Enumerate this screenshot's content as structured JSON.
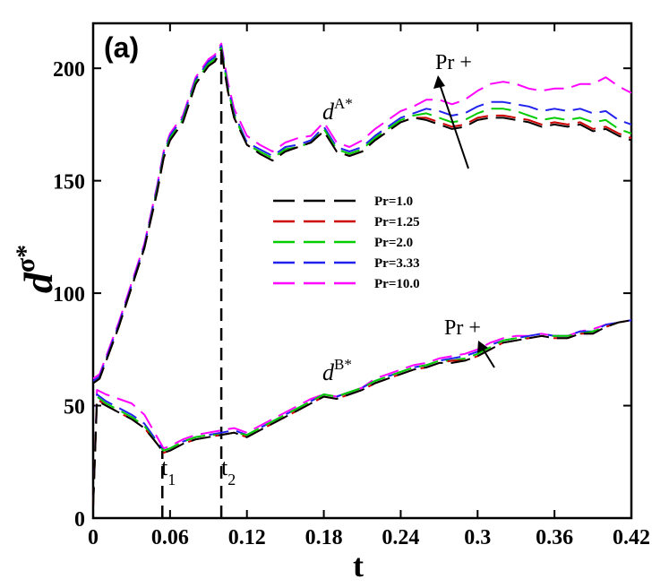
{
  "chart_data": {
    "type": "line",
    "panel_label": "(a)",
    "xlabel": "t",
    "ylabel_base": "d",
    "ylabel_sup": "σ*",
    "xlim": [
      0,
      0.42
    ],
    "ylim": [
      0,
      220
    ],
    "xticks": [
      0,
      0.06,
      0.12,
      0.18,
      0.24,
      0.3,
      0.36,
      0.42
    ],
    "xtick_labels": [
      "0",
      "0.06",
      "0.12",
      "0.18",
      "0.24",
      "0.3",
      "0.36",
      "0.42"
    ],
    "yticks": [
      0,
      50,
      100,
      150,
      200
    ],
    "ytick_labels": [
      "0",
      "50",
      "100",
      "150",
      "200"
    ],
    "grid": false,
    "legend_position": "center",
    "annotations": {
      "dA_base": "d",
      "dA_sup": "A*",
      "dB_base": "d",
      "dB_sup": "B*",
      "pr_upper": "Pr +",
      "pr_lower": "Pr +",
      "t1_base": "t",
      "t1_sub": "1",
      "t2_base": "t",
      "t2_sub": "2"
    },
    "vlines": [
      {
        "name": "t1",
        "x": 0.054,
        "y_top": 30
      },
      {
        "name": "t2",
        "x": 0.1,
        "y_top": 208
      }
    ],
    "series": [
      {
        "name": "Pr=1.0",
        "color": "#000000",
        "A_x": [
          0,
          0.005,
          0.02,
          0.04,
          0.05,
          0.055,
          0.06,
          0.07,
          0.08,
          0.09,
          0.095,
          0.1,
          0.105,
          0.11,
          0.12,
          0.13,
          0.14,
          0.15,
          0.16,
          0.17,
          0.18,
          0.19,
          0.2,
          0.21,
          0.22,
          0.23,
          0.24,
          0.25,
          0.26,
          0.27,
          0.28,
          0.29,
          0.3,
          0.31,
          0.32,
          0.33,
          0.34,
          0.35,
          0.36,
          0.37,
          0.38,
          0.39,
          0.4,
          0.41,
          0.42
        ],
        "A_y": [
          60,
          62,
          85,
          120,
          145,
          160,
          168,
          176,
          193,
          201,
          203,
          208,
          190,
          178,
          166,
          162,
          159,
          163,
          165,
          167,
          172,
          163,
          161,
          163,
          168,
          172,
          176,
          178,
          177,
          175,
          173,
          174,
          177,
          178,
          178,
          177,
          176,
          174,
          175,
          174,
          175,
          172,
          173,
          170,
          168
        ],
        "B_x": [
          0,
          0.003,
          0.01,
          0.02,
          0.03,
          0.04,
          0.05,
          0.055,
          0.06,
          0.07,
          0.08,
          0.09,
          0.1,
          0.11,
          0.12,
          0.13,
          0.14,
          0.15,
          0.16,
          0.17,
          0.18,
          0.19,
          0.2,
          0.21,
          0.22,
          0.23,
          0.24,
          0.25,
          0.26,
          0.27,
          0.28,
          0.29,
          0.3,
          0.31,
          0.32,
          0.33,
          0.34,
          0.35,
          0.36,
          0.37,
          0.38,
          0.39,
          0.4,
          0.41,
          0.42
        ],
        "B_y": [
          5,
          52,
          50,
          47,
          44,
          40,
          33,
          29,
          30,
          33,
          35,
          36,
          37,
          38,
          36,
          39,
          42,
          45,
          48,
          51,
          54,
          53,
          55,
          57,
          60,
          62,
          64,
          66,
          67,
          69,
          69,
          70,
          72,
          75,
          78,
          79,
          80,
          81,
          80,
          80,
          82,
          82,
          85,
          87,
          88
        ]
      },
      {
        "name": "Pr=1.25",
        "color": "#cc0000",
        "A_x": [
          0,
          0.005,
          0.02,
          0.04,
          0.05,
          0.055,
          0.06,
          0.07,
          0.08,
          0.09,
          0.095,
          0.1,
          0.105,
          0.11,
          0.12,
          0.13,
          0.14,
          0.15,
          0.16,
          0.17,
          0.18,
          0.19,
          0.2,
          0.21,
          0.22,
          0.23,
          0.24,
          0.25,
          0.26,
          0.27,
          0.28,
          0.29,
          0.3,
          0.31,
          0.32,
          0.33,
          0.34,
          0.35,
          0.36,
          0.37,
          0.38,
          0.39,
          0.4,
          0.41,
          0.42
        ],
        "A_y": [
          60,
          62,
          85,
          120,
          145,
          160,
          168,
          176,
          193,
          201,
          203,
          208,
          190,
          178,
          166,
          162,
          159,
          163,
          165,
          167,
          172,
          163,
          161,
          163,
          168,
          172,
          176,
          178,
          178,
          176,
          174,
          175,
          178,
          179,
          179,
          178,
          177,
          175,
          176,
          175,
          176,
          173,
          174,
          171,
          169
        ],
        "B_x": [
          0,
          0.003,
          0.01,
          0.02,
          0.03,
          0.04,
          0.05,
          0.055,
          0.06,
          0.07,
          0.08,
          0.09,
          0.1,
          0.11,
          0.12,
          0.13,
          0.14,
          0.15,
          0.16,
          0.17,
          0.18,
          0.19,
          0.2,
          0.21,
          0.22,
          0.23,
          0.24,
          0.25,
          0.26,
          0.27,
          0.28,
          0.29,
          0.3,
          0.31,
          0.32,
          0.33,
          0.34,
          0.35,
          0.36,
          0.37,
          0.38,
          0.39,
          0.4,
          0.41,
          0.42
        ],
        "B_y": [
          5,
          53,
          50,
          47,
          44,
          40,
          33,
          29,
          30,
          33,
          35,
          36,
          37,
          38,
          36,
          39,
          42,
          45,
          48,
          51,
          54,
          53,
          55,
          57,
          60,
          62,
          64,
          66,
          67,
          69,
          70,
          70,
          72,
          75,
          78,
          79,
          80,
          81,
          80,
          80,
          82,
          82,
          85,
          87,
          88
        ]
      },
      {
        "name": "Pr=2.0",
        "color": "#00cc00",
        "A_x": [
          0,
          0.005,
          0.02,
          0.04,
          0.05,
          0.055,
          0.06,
          0.07,
          0.08,
          0.09,
          0.095,
          0.1,
          0.105,
          0.11,
          0.12,
          0.13,
          0.14,
          0.15,
          0.16,
          0.17,
          0.18,
          0.19,
          0.2,
          0.21,
          0.22,
          0.23,
          0.24,
          0.25,
          0.26,
          0.27,
          0.28,
          0.29,
          0.3,
          0.31,
          0.32,
          0.33,
          0.34,
          0.35,
          0.36,
          0.37,
          0.38,
          0.39,
          0.4,
          0.41,
          0.42
        ],
        "A_y": [
          60,
          62,
          85,
          120,
          146,
          161,
          169,
          177,
          194,
          202,
          204,
          209,
          191,
          179,
          166,
          163,
          160,
          164,
          165,
          167,
          173,
          164,
          162,
          164,
          169,
          173,
          177,
          179,
          180,
          178,
          176,
          177,
          180,
          182,
          182,
          181,
          179,
          177,
          178,
          177,
          178,
          176,
          177,
          173,
          171
        ],
        "B_x": [
          0,
          0.003,
          0.01,
          0.02,
          0.03,
          0.04,
          0.05,
          0.055,
          0.06,
          0.07,
          0.08,
          0.09,
          0.1,
          0.11,
          0.12,
          0.13,
          0.14,
          0.15,
          0.16,
          0.17,
          0.18,
          0.19,
          0.2,
          0.21,
          0.22,
          0.23,
          0.24,
          0.25,
          0.26,
          0.27,
          0.28,
          0.29,
          0.3,
          0.31,
          0.32,
          0.33,
          0.34,
          0.35,
          0.36,
          0.37,
          0.38,
          0.39,
          0.4,
          0.41,
          0.42
        ],
        "B_y": [
          5,
          54,
          51,
          48,
          45,
          41,
          33,
          30,
          31,
          34,
          36,
          37,
          37,
          38,
          37,
          40,
          43,
          46,
          49,
          52,
          55,
          54,
          56,
          58,
          61,
          63,
          65,
          67,
          68,
          70,
          70,
          71,
          73,
          76,
          79,
          80,
          80,
          81,
          81,
          81,
          82,
          83,
          85,
          87,
          88
        ]
      },
      {
        "name": "Pr=3.33",
        "color": "#2222ee",
        "A_x": [
          0,
          0.005,
          0.02,
          0.04,
          0.05,
          0.055,
          0.06,
          0.07,
          0.08,
          0.09,
          0.095,
          0.1,
          0.105,
          0.11,
          0.12,
          0.13,
          0.14,
          0.15,
          0.16,
          0.17,
          0.18,
          0.19,
          0.2,
          0.21,
          0.22,
          0.23,
          0.24,
          0.25,
          0.26,
          0.27,
          0.28,
          0.29,
          0.3,
          0.31,
          0.32,
          0.33,
          0.34,
          0.35,
          0.36,
          0.37,
          0.38,
          0.39,
          0.4,
          0.41,
          0.42
        ],
        "A_y": [
          61,
          63,
          86,
          121,
          147,
          162,
          170,
          178,
          195,
          203,
          205,
          210,
          192,
          180,
          167,
          164,
          161,
          165,
          166,
          168,
          174,
          165,
          163,
          165,
          170,
          174,
          178,
          180,
          182,
          181,
          179,
          180,
          183,
          185,
          185,
          184,
          183,
          181,
          182,
          181,
          182,
          180,
          181,
          177,
          175
        ],
        "B_x": [
          0,
          0.003,
          0.01,
          0.02,
          0.03,
          0.04,
          0.05,
          0.055,
          0.06,
          0.07,
          0.08,
          0.09,
          0.1,
          0.11,
          0.12,
          0.13,
          0.14,
          0.15,
          0.16,
          0.17,
          0.18,
          0.19,
          0.2,
          0.21,
          0.22,
          0.23,
          0.24,
          0.25,
          0.26,
          0.27,
          0.28,
          0.29,
          0.3,
          0.31,
          0.32,
          0.33,
          0.34,
          0.35,
          0.36,
          0.37,
          0.38,
          0.39,
          0.4,
          0.41,
          0.42
        ],
        "B_y": [
          5,
          55,
          52,
          49,
          46,
          42,
          34,
          30,
          31,
          34,
          36,
          37,
          38,
          39,
          37,
          40,
          43,
          46,
          49,
          52,
          55,
          54,
          56,
          58,
          61,
          63,
          65,
          67,
          68,
          70,
          71,
          72,
          74,
          77,
          79,
          80,
          81,
          82,
          81,
          81,
          83,
          83,
          86,
          87,
          88
        ]
      },
      {
        "name": "Pr=10.0",
        "color": "#ff00ff",
        "A_x": [
          0,
          0.005,
          0.02,
          0.04,
          0.05,
          0.055,
          0.06,
          0.07,
          0.08,
          0.09,
          0.095,
          0.1,
          0.105,
          0.11,
          0.12,
          0.13,
          0.14,
          0.15,
          0.16,
          0.17,
          0.18,
          0.19,
          0.2,
          0.21,
          0.22,
          0.23,
          0.24,
          0.25,
          0.26,
          0.27,
          0.28,
          0.29,
          0.3,
          0.31,
          0.32,
          0.33,
          0.34,
          0.35,
          0.36,
          0.37,
          0.38,
          0.39,
          0.4,
          0.41,
          0.42
        ],
        "A_y": [
          62,
          64,
          87,
          122,
          148,
          163,
          171,
          179,
          196,
          204,
          206,
          211,
          194,
          182,
          170,
          166,
          163,
          167,
          169,
          170,
          176,
          167,
          165,
          168,
          173,
          177,
          181,
          183,
          186,
          186,
          184,
          186,
          190,
          193,
          194,
          193,
          191,
          190,
          191,
          191,
          193,
          193,
          196,
          192,
          189
        ],
        "B_x": [
          0,
          0.003,
          0.01,
          0.02,
          0.03,
          0.04,
          0.05,
          0.055,
          0.06,
          0.07,
          0.08,
          0.09,
          0.1,
          0.11,
          0.12,
          0.13,
          0.14,
          0.15,
          0.16,
          0.17,
          0.18,
          0.19,
          0.2,
          0.21,
          0.22,
          0.23,
          0.24,
          0.25,
          0.26,
          0.27,
          0.28,
          0.29,
          0.3,
          0.31,
          0.32,
          0.33,
          0.34,
          0.35,
          0.36,
          0.37,
          0.38,
          0.39,
          0.4,
          0.41,
          0.42
        ],
        "B_y": [
          5,
          57,
          55,
          53,
          51,
          46,
          36,
          31,
          32,
          35,
          37,
          38,
          39,
          40,
          38,
          41,
          44,
          47,
          50,
          53,
          55,
          54,
          56,
          58,
          62,
          64,
          66,
          68,
          69,
          71,
          72,
          73,
          75,
          78,
          80,
          81,
          81,
          82,
          81,
          81,
          83,
          84,
          86,
          87,
          88
        ]
      }
    ]
  }
}
